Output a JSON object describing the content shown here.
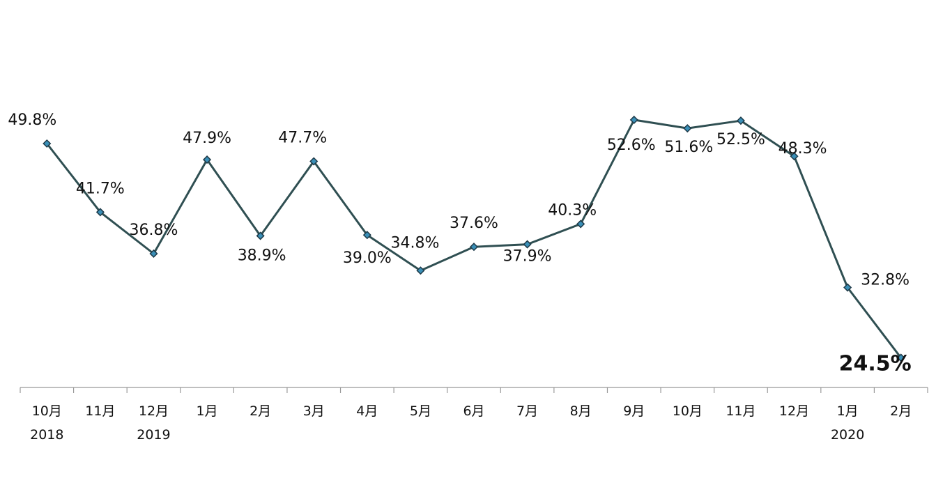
{
  "chart_data": {
    "type": "line",
    "title": "",
    "xlabel": "",
    "ylabel": "",
    "grid": false,
    "legend": "none",
    "categories": [
      "10月",
      "11月",
      "12月",
      "1月",
      "2月",
      "3月",
      "4月",
      "5月",
      "6月",
      "7月",
      "8月",
      "9月",
      "10月",
      "11月",
      "12月",
      "1月",
      "2月"
    ],
    "year_labels": [
      {
        "index": 0,
        "text": "2018"
      },
      {
        "index": 2,
        "text": "2019"
      },
      {
        "index": 15,
        "text": "2020"
      }
    ],
    "series": [
      {
        "values": [
          49.8,
          41.7,
          36.8,
          47.9,
          38.9,
          47.7,
          39.0,
          34.8,
          37.6,
          37.9,
          40.3,
          52.6,
          51.6,
          52.5,
          48.3,
          32.8,
          24.5
        ],
        "labels": [
          "49.8%",
          "41.7%",
          "36.8%",
          "47.9%",
          "38.9%",
          "47.7%",
          "39.0%",
          "34.8%",
          "37.6%",
          "37.9%",
          "40.3%",
          "52.6%",
          "51.6%",
          "52.5%",
          "48.3%",
          "32.8%",
          "24.5%"
        ]
      }
    ],
    "emphasized_index": 16,
    "colors": {
      "line": "#2f4f52",
      "marker_fill": "#3a8fb7",
      "marker_stroke": "#1e3a48",
      "axis": "#999999"
    }
  }
}
